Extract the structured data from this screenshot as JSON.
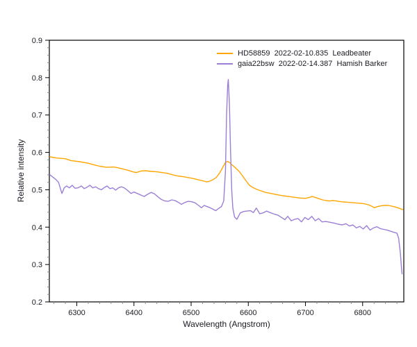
{
  "chart_data": {
    "type": "line",
    "title": "",
    "xlabel": "Wavelength (Angstrom)",
    "ylabel": "Relative intensity",
    "xlim": [
      6252,
      6872
    ],
    "ylim": [
      0.2,
      0.9
    ],
    "x_major_ticks": [
      6300,
      6400,
      6500,
      6600,
      6700,
      6800
    ],
    "x_minor_step": 20,
    "y_major_ticks": [
      0.2,
      0.3,
      0.4,
      0.5,
      0.6,
      0.7,
      0.8,
      0.9
    ],
    "y_minor_step": 0.02,
    "grid": false,
    "legend_position": "top-center-right",
    "frame_color": "#000000",
    "minor_tick_color": "#8a8a8a",
    "series": [
      {
        "name": "HD58859  2022-02-10.835  Leadbeater",
        "color": "#FFA500",
        "points": [
          [
            6253,
            0.588
          ],
          [
            6265,
            0.585
          ],
          [
            6280,
            0.583
          ],
          [
            6290,
            0.578
          ],
          [
            6305,
            0.575
          ],
          [
            6320,
            0.571
          ],
          [
            6332,
            0.566
          ],
          [
            6340,
            0.563
          ],
          [
            6352,
            0.56
          ],
          [
            6364,
            0.561
          ],
          [
            6372,
            0.559
          ],
          [
            6382,
            0.555
          ],
          [
            6390,
            0.552
          ],
          [
            6398,
            0.548
          ],
          [
            6404,
            0.546
          ],
          [
            6412,
            0.55
          ],
          [
            6420,
            0.551
          ],
          [
            6430,
            0.549
          ],
          [
            6440,
            0.548
          ],
          [
            6450,
            0.546
          ],
          [
            6458,
            0.544
          ],
          [
            6468,
            0.54
          ],
          [
            6476,
            0.537
          ],
          [
            6486,
            0.535
          ],
          [
            6494,
            0.533
          ],
          [
            6504,
            0.53
          ],
          [
            6512,
            0.527
          ],
          [
            6520,
            0.524
          ],
          [
            6527,
            0.521
          ],
          [
            6533,
            0.523
          ],
          [
            6538,
            0.527
          ],
          [
            6544,
            0.533
          ],
          [
            6550,
            0.545
          ],
          [
            6556,
            0.562
          ],
          [
            6560,
            0.573
          ],
          [
            6564,
            0.576
          ],
          [
            6568,
            0.572
          ],
          [
            6572,
            0.566
          ],
          [
            6578,
            0.558
          ],
          [
            6584,
            0.549
          ],
          [
            6590,
            0.537
          ],
          [
            6596,
            0.524
          ],
          [
            6602,
            0.512
          ],
          [
            6608,
            0.506
          ],
          [
            6615,
            0.501
          ],
          [
            6622,
            0.497
          ],
          [
            6630,
            0.493
          ],
          [
            6640,
            0.49
          ],
          [
            6650,
            0.487
          ],
          [
            6660,
            0.484
          ],
          [
            6670,
            0.482
          ],
          [
            6680,
            0.48
          ],
          [
            6690,
            0.478
          ],
          [
            6700,
            0.477
          ],
          [
            6706,
            0.479
          ],
          [
            6712,
            0.482
          ],
          [
            6718,
            0.479
          ],
          [
            6724,
            0.476
          ],
          [
            6730,
            0.473
          ],
          [
            6736,
            0.471
          ],
          [
            6742,
            0.47
          ],
          [
            6748,
            0.471
          ],
          [
            6754,
            0.47
          ],
          [
            6762,
            0.468
          ],
          [
            6770,
            0.467
          ],
          [
            6778,
            0.466
          ],
          [
            6786,
            0.465
          ],
          [
            6794,
            0.464
          ],
          [
            6802,
            0.463
          ],
          [
            6810,
            0.46
          ],
          [
            6816,
            0.456
          ],
          [
            6820,
            0.452
          ],
          [
            6826,
            0.455
          ],
          [
            6832,
            0.457
          ],
          [
            6838,
            0.458
          ],
          [
            6845,
            0.458
          ],
          [
            6851,
            0.456
          ],
          [
            6857,
            0.454
          ],
          [
            6863,
            0.451
          ],
          [
            6870,
            0.447
          ]
        ]
      },
      {
        "name": "gaia22bsw  2022-02-14.387  Hamish Barker",
        "color": "#9B7FD7",
        "points": [
          [
            6253,
            0.54
          ],
          [
            6258,
            0.534
          ],
          [
            6263,
            0.528
          ],
          [
            6268,
            0.52
          ],
          [
            6271,
            0.505
          ],
          [
            6274,
            0.49
          ],
          [
            6278,
            0.505
          ],
          [
            6282,
            0.51
          ],
          [
            6287,
            0.505
          ],
          [
            6292,
            0.512
          ],
          [
            6297,
            0.504
          ],
          [
            6302,
            0.505
          ],
          [
            6308,
            0.51
          ],
          [
            6313,
            0.503
          ],
          [
            6318,
            0.507
          ],
          [
            6323,
            0.512
          ],
          [
            6328,
            0.505
          ],
          [
            6333,
            0.508
          ],
          [
            6338,
            0.503
          ],
          [
            6343,
            0.5
          ],
          [
            6348,
            0.506
          ],
          [
            6353,
            0.51
          ],
          [
            6358,
            0.503
          ],
          [
            6363,
            0.505
          ],
          [
            6368,
            0.499
          ],
          [
            6373,
            0.505
          ],
          [
            6378,
            0.508
          ],
          [
            6383,
            0.505
          ],
          [
            6389,
            0.498
          ],
          [
            6395,
            0.49
          ],
          [
            6400,
            0.494
          ],
          [
            6406,
            0.49
          ],
          [
            6412,
            0.486
          ],
          [
            6418,
            0.482
          ],
          [
            6424,
            0.488
          ],
          [
            6430,
            0.493
          ],
          [
            6436,
            0.489
          ],
          [
            6442,
            0.481
          ],
          [
            6448,
            0.474
          ],
          [
            6454,
            0.47
          ],
          [
            6460,
            0.469
          ],
          [
            6466,
            0.473
          ],
          [
            6472,
            0.471
          ],
          [
            6478,
            0.466
          ],
          [
            6483,
            0.461
          ],
          [
            6489,
            0.466
          ],
          [
            6495,
            0.469
          ],
          [
            6501,
            0.468
          ],
          [
            6507,
            0.465
          ],
          [
            6513,
            0.458
          ],
          [
            6518,
            0.452
          ],
          [
            6523,
            0.458
          ],
          [
            6528,
            0.455
          ],
          [
            6533,
            0.452
          ],
          [
            6538,
            0.448
          ],
          [
            6543,
            0.444
          ],
          [
            6548,
            0.45
          ],
          [
            6553,
            0.455
          ],
          [
            6557,
            0.47
          ],
          [
            6560,
            0.55
          ],
          [
            6562,
            0.7
          ],
          [
            6564,
            0.78
          ],
          [
            6565,
            0.795
          ],
          [
            6567,
            0.73
          ],
          [
            6569,
            0.6
          ],
          [
            6571,
            0.5
          ],
          [
            6573,
            0.451
          ],
          [
            6576,
            0.427
          ],
          [
            6580,
            0.421
          ],
          [
            6586,
            0.438
          ],
          [
            6592,
            0.442
          ],
          [
            6598,
            0.443
          ],
          [
            6604,
            0.444
          ],
          [
            6609,
            0.439
          ],
          [
            6614,
            0.451
          ],
          [
            6620,
            0.436
          ],
          [
            6626,
            0.438
          ],
          [
            6632,
            0.443
          ],
          [
            6638,
            0.439
          ],
          [
            6645,
            0.435
          ],
          [
            6652,
            0.432
          ],
          [
            6658,
            0.426
          ],
          [
            6664,
            0.42
          ],
          [
            6669,
            0.429
          ],
          [
            6675,
            0.417
          ],
          [
            6681,
            0.421
          ],
          [
            6687,
            0.423
          ],
          [
            6693,
            0.414
          ],
          [
            6699,
            0.426
          ],
          [
            6705,
            0.42
          ],
          [
            6711,
            0.429
          ],
          [
            6717,
            0.417
          ],
          [
            6723,
            0.423
          ],
          [
            6729,
            0.414
          ],
          [
            6736,
            0.415
          ],
          [
            6743,
            0.413
          ],
          [
            6750,
            0.411
          ],
          [
            6757,
            0.408
          ],
          [
            6764,
            0.406
          ],
          [
            6771,
            0.409
          ],
          [
            6777,
            0.403
          ],
          [
            6783,
            0.406
          ],
          [
            6789,
            0.398
          ],
          [
            6795,
            0.402
          ],
          [
            6801,
            0.395
          ],
          [
            6807,
            0.404
          ],
          [
            6813,
            0.392
          ],
          [
            6819,
            0.398
          ],
          [
            6825,
            0.401
          ],
          [
            6831,
            0.396
          ],
          [
            6837,
            0.394
          ],
          [
            6843,
            0.392
          ],
          [
            6849,
            0.389
          ],
          [
            6855,
            0.386
          ],
          [
            6860,
            0.384
          ],
          [
            6863,
            0.37
          ],
          [
            6866,
            0.33
          ],
          [
            6868,
            0.29
          ],
          [
            6869,
            0.275
          ]
        ]
      }
    ]
  },
  "legend": {
    "items": [
      {
        "label": "HD58859  2022-02-10.835  Leadbeater",
        "color": "#FFA500"
      },
      {
        "label": "gaia22bsw  2022-02-14.387  Hamish Barker",
        "color": "#9B7FD7"
      }
    ]
  }
}
